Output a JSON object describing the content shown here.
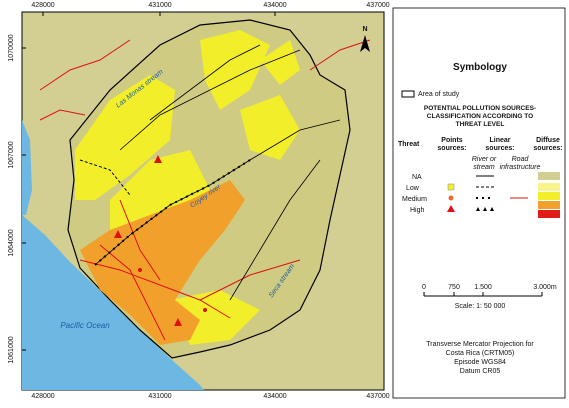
{
  "map": {
    "x_labels": [
      428000,
      431000,
      434000,
      437000
    ],
    "y_labels": [
      1070000,
      1067000,
      1064000,
      1061000
    ],
    "north": "N",
    "places": [
      "Las Monas stream",
      "Coyey river",
      "Seca stream",
      "Pacific Ocean"
    ]
  },
  "legend": {
    "title": "Symbology",
    "area": "Area of study",
    "heading": [
      "POTENTIAL POLLUTION SOURCES-",
      "CLASSIFICATION ACCORDING TO",
      "THREAT LEVEL"
    ],
    "threat": "Threat",
    "points": [
      "Points",
      "sources:"
    ],
    "linear": [
      "Linear",
      "sources:"
    ],
    "river": [
      "River or",
      "stream"
    ],
    "road": [
      "Road",
      "infrastructure"
    ],
    "diffuse": [
      "Diffuse",
      "sources:"
    ],
    "levels": [
      "NA",
      "Low",
      "Medium",
      "High"
    ]
  },
  "scale": {
    "ticks": [
      "0",
      "750",
      "1.500",
      "3.000m"
    ],
    "text": "Scale: 1: 50 000"
  },
  "projection": [
    "Transverse Mercator Projection for",
    "Costa Rica (CRTM05)",
    "Episode WGS84",
    "Datum CR05"
  ]
}
